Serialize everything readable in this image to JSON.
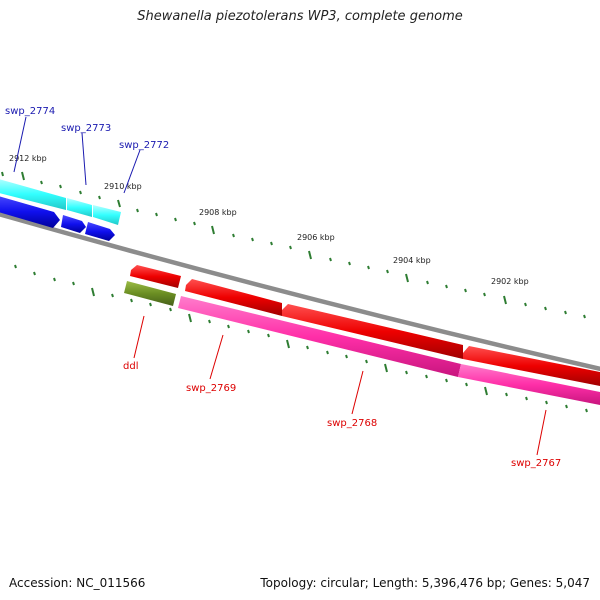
{
  "title": "Shewanella piezotolerans WP3, complete genome",
  "footer": {
    "accession": "Accession: NC_011566",
    "summary": "Topology: circular; Length: 5,396,476 bp; Genes: 5,047"
  },
  "colors": {
    "backbone": "#8c8c8c",
    "tick": "#2e7d32",
    "forward_strand_outer": "#33ffff",
    "forward_strand_inner": "#1010ee",
    "reverse_cds": "#ee0000",
    "reverse_rna": "#ff2fa8",
    "other": "#6b8e23",
    "label_forward": "#1a1ab0",
    "label_reverse": "#dd0000"
  },
  "ticks": [
    {
      "label": "2912 kbp"
    },
    {
      "label": "2910 kbp"
    },
    {
      "label": "2908 kbp"
    },
    {
      "label": "2906 kbp"
    },
    {
      "label": "2904 kbp"
    },
    {
      "label": "2902 kbp"
    }
  ],
  "genes": {
    "forward": [
      {
        "label": "swp_2774"
      },
      {
        "label": "swp_2773"
      },
      {
        "label": "swp_2772"
      }
    ],
    "reverse": [
      {
        "label": "ddl"
      },
      {
        "label": "swp_2769"
      },
      {
        "label": "swp_2768"
      },
      {
        "label": "swp_2767"
      }
    ]
  }
}
